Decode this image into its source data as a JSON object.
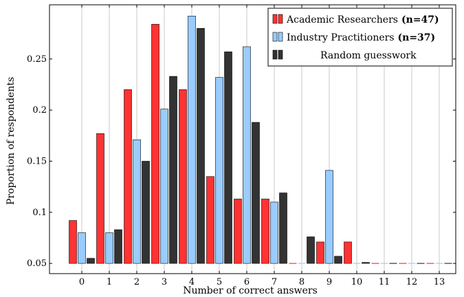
{
  "chart_data": {
    "type": "bar",
    "xlabel": "Number of correct answers",
    "ylabel": "Proportion of respondents",
    "categories": [
      "0",
      "1",
      "2",
      "3",
      "4",
      "5",
      "6",
      "7",
      "8",
      "9",
      "10",
      "11",
      "12",
      "13"
    ],
    "ylim": [
      0.04,
      0.303
    ],
    "y_ticks": [
      0.05,
      0.1,
      0.15,
      0.2,
      0.25
    ],
    "y_tick_labels": [
      "0.05",
      "0.1",
      "0.15",
      "0.2",
      "0.25"
    ],
    "bar_base": 0.05,
    "grid": "vertical",
    "legend_position": "top-right",
    "series": [
      {
        "legend_label": "Academic Researchers",
        "legend_bold": "(n=47)",
        "color": "#ff3333",
        "values": [
          0.092,
          0.177,
          0.22,
          0.284,
          0.22,
          0.135,
          0.113,
          0.113,
          0.05,
          0.071,
          0.071,
          0.05,
          0.05,
          0.05
        ]
      },
      {
        "legend_label": "Industry Practitioners",
        "legend_bold": "(n=37)",
        "color": "#99ccff",
        "values": [
          0.08,
          0.08,
          0.171,
          0.201,
          0.292,
          0.232,
          0.262,
          0.11,
          0.05,
          0.141,
          0.05,
          0.05,
          0.05,
          0.05
        ]
      },
      {
        "legend_label": "Random guesswork",
        "legend_bold": "",
        "color": "#333333",
        "values": [
          0.055,
          0.083,
          0.15,
          0.233,
          0.28,
          0.257,
          0.188,
          0.119,
          0.076,
          0.057,
          0.051,
          0.05,
          0.05,
          0.05
        ]
      }
    ]
  }
}
